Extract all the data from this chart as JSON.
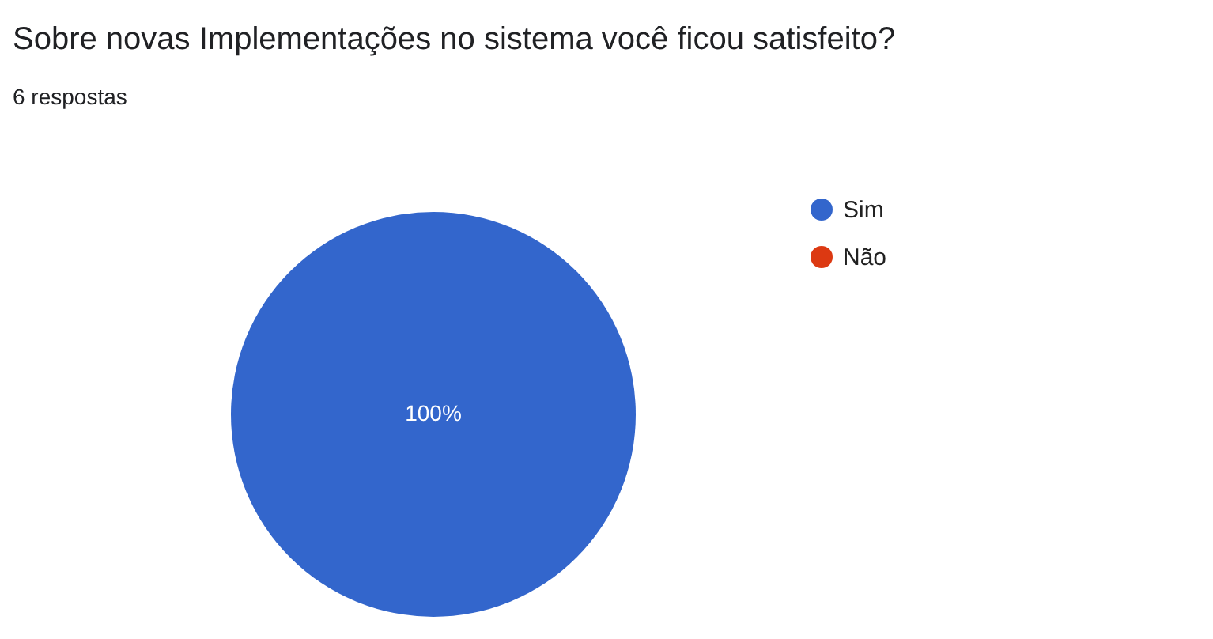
{
  "chart_data": {
    "type": "pie",
    "title": "Sobre novas Implementações no sistema você ficou satisfeito?",
    "subtitle": "6 respostas",
    "categories": [
      "Sim",
      "Não"
    ],
    "values": [
      100,
      0
    ],
    "colors": [
      "#3366cc",
      "#dc3912"
    ],
    "value_labels": [
      "100%",
      null
    ],
    "legend": "top right"
  }
}
